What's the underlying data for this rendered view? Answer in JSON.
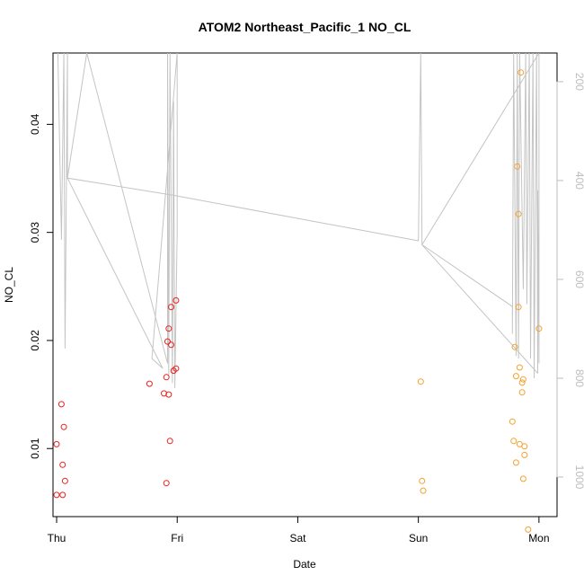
{
  "chart_data": {
    "type": "scatter",
    "title": "ATOM2 Northeast_Pacific_1 NO_CL",
    "xlabel": "Date",
    "ylabel": "NO_CL",
    "x_unit": "days since Thu 00:00",
    "xlim": [
      -0.03,
      4.15
    ],
    "ylim": [
      0.0037,
      0.0466
    ],
    "x_ticks": [
      {
        "value": 0,
        "label": "Thu"
      },
      {
        "value": 1,
        "label": "Fri"
      },
      {
        "value": 2,
        "label": "Sat"
      },
      {
        "value": 3,
        "label": "Sun"
      },
      {
        "value": 4,
        "label": "Mon"
      }
    ],
    "y_ticks": [
      {
        "value": 0.01,
        "label": "0.01"
      },
      {
        "value": 0.02,
        "label": "0.02"
      },
      {
        "value": 0.03,
        "label": "0.03"
      },
      {
        "value": 0.04,
        "label": "0.04"
      }
    ],
    "right_axis": {
      "reversed": true,
      "range": [
        142,
        1080
      ],
      "ticks": [
        {
          "value": 200,
          "label": "200"
        },
        {
          "value": 400,
          "label": "400"
        },
        {
          "value": 600,
          "label": "600"
        },
        {
          "value": 800,
          "label": "800"
        },
        {
          "value": 1000,
          "label": "1000"
        }
      ]
    },
    "series": [
      {
        "color": "#e8221f",
        "points": [
          {
            "x": 0.0,
            "y": 0.0104
          },
          {
            "x": 0.0,
            "y": 0.0057
          },
          {
            "x": 0.04,
            "y": 0.0141
          },
          {
            "x": 0.05,
            "y": 0.0057
          },
          {
            "x": 0.06,
            "y": 0.012
          },
          {
            "x": 0.05,
            "y": 0.0085
          },
          {
            "x": 0.07,
            "y": 0.007
          },
          {
            "x": 0.77,
            "y": 0.016
          },
          {
            "x": 0.89,
            "y": 0.0151
          },
          {
            "x": 0.91,
            "y": 0.0166
          },
          {
            "x": 0.92,
            "y": 0.0199
          },
          {
            "x": 0.93,
            "y": 0.0211
          },
          {
            "x": 0.93,
            "y": 0.015
          },
          {
            "x": 0.91,
            "y": 0.0068
          },
          {
            "x": 0.94,
            "y": 0.0107
          },
          {
            "x": 0.95,
            "y": 0.0231
          },
          {
            "x": 0.95,
            "y": 0.0196
          },
          {
            "x": 0.97,
            "y": 0.0172
          },
          {
            "x": 0.99,
            "y": 0.0237
          },
          {
            "x": 0.99,
            "y": 0.0174
          }
        ]
      },
      {
        "color": "#f5a12d",
        "points": [
          {
            "x": 3.02,
            "y": 0.0162
          },
          {
            "x": 3.03,
            "y": 0.007
          },
          {
            "x": 3.04,
            "y": 0.0061
          },
          {
            "x": 3.78,
            "y": 0.0125
          },
          {
            "x": 3.79,
            "y": 0.0107
          },
          {
            "x": 3.8,
            "y": 0.0194
          },
          {
            "x": 3.81,
            "y": 0.0167
          },
          {
            "x": 3.81,
            "y": 0.0087
          },
          {
            "x": 3.82,
            "y": 0.0361
          },
          {
            "x": 3.83,
            "y": 0.0317
          },
          {
            "x": 3.83,
            "y": 0.0231
          },
          {
            "x": 3.84,
            "y": 0.0175
          },
          {
            "x": 3.84,
            "y": 0.0104
          },
          {
            "x": 3.85,
            "y": 0.0448
          },
          {
            "x": 3.86,
            "y": 0.0161
          },
          {
            "x": 3.86,
            "y": 0.0152
          },
          {
            "x": 3.87,
            "y": 0.0072
          },
          {
            "x": 3.87,
            "y": 0.0164
          },
          {
            "x": 3.88,
            "y": 0.0102
          },
          {
            "x": 3.88,
            "y": 0.0094
          },
          {
            "x": 3.91,
            "y": 0.0025
          },
          {
            "x": 4.0,
            "y": 0.0211
          }
        ]
      }
    ],
    "depth_line": {
      "color": "#c4c4c4",
      "points": [
        [
          0.01,
          142
        ],
        [
          0.04,
          520
        ],
        [
          0.06,
          142
        ],
        [
          0.07,
          740
        ],
        [
          0.09,
          142
        ],
        [
          0.09,
          395
        ],
        [
          0.25,
          142
        ],
        [
          0.92,
          770
        ],
        [
          0.92,
          142
        ],
        [
          0.93,
          795
        ],
        [
          0.94,
          142
        ],
        [
          0.96,
          810
        ],
        [
          0.97,
          240
        ],
        [
          0.98,
          820
        ],
        [
          1.0,
          505
        ],
        [
          1.0,
          142
        ],
        [
          0.79,
          760
        ],
        [
          0.88,
          780
        ],
        [
          0.09,
          395
        ],
        [
          0.97,
          430
        ],
        [
          3.0,
          522
        ],
        [
          3.02,
          142
        ],
        [
          3.03,
          530
        ],
        [
          3.78,
          655
        ],
        [
          3.78,
          710
        ],
        [
          3.79,
          142
        ],
        [
          3.81,
          755
        ],
        [
          3.82,
          142
        ],
        [
          3.83,
          760
        ],
        [
          3.84,
          142
        ],
        [
          3.87,
          620
        ],
        [
          3.89,
          142
        ],
        [
          3.9,
          650
        ],
        [
          3.92,
          142
        ],
        [
          3.93,
          760
        ],
        [
          3.95,
          142
        ],
        [
          3.96,
          800
        ],
        [
          3.98,
          142
        ],
        [
          3.99,
          790
        ],
        [
          3.99,
          420
        ],
        [
          4.0,
          770
        ],
        [
          4.0,
          142
        ],
        [
          3.03,
          530
        ],
        [
          3.99,
          790
        ]
      ]
    }
  }
}
